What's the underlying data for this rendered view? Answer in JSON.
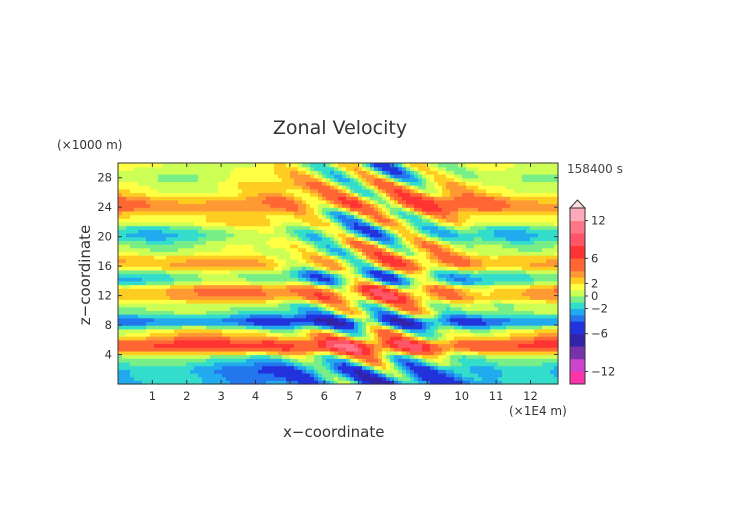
{
  "chart_data": {
    "type": "heatmap",
    "title": "Zonal Velocity",
    "xlabel": "x−coordinate",
    "ylabel": "z−coordinate",
    "x_unit": "(×1E4 m)",
    "y_unit": "(×1000 m)",
    "time_label": "158400 s",
    "xlim": [
      0,
      12.8
    ],
    "ylim": [
      0,
      30
    ],
    "x_ticks": [
      "1",
      "2",
      "3",
      "4",
      "5",
      "6",
      "7",
      "8",
      "9",
      "10",
      "11",
      "12"
    ],
    "y_ticks": [
      "4",
      "8",
      "12",
      "16",
      "20",
      "24",
      "28"
    ],
    "colorbar": {
      "range": [
        -14,
        14
      ],
      "tick_labels": [
        "12",
        "6",
        "2",
        "0",
        "−2",
        "−6",
        "−12"
      ],
      "tick_values": [
        12,
        6,
        2,
        0,
        -2,
        -6,
        -12
      ],
      "levels": [
        -14,
        -12,
        -10,
        -8,
        -6,
        -4,
        -3,
        -2,
        -1,
        0,
        1,
        2,
        3,
        4,
        6,
        8,
        10,
        12,
        14
      ],
      "colors": [
        "#ff33aa",
        "#cc44cc",
        "#7733aa",
        "#3322aa",
        "#2233dd",
        "#2277ee",
        "#22aaee",
        "#33ddcc",
        "#77ee88",
        "#ccff55",
        "#ffff44",
        "#ffcc22",
        "#ff9933",
        "#ff6633",
        "#ff3333",
        "#ff5566",
        "#ff7788",
        "#ffaabb"
      ]
    },
    "bands": [
      {
        "z": 1.5,
        "value": -3
      },
      {
        "z": 3.5,
        "value": -1
      },
      {
        "z": 5.0,
        "value": 7
      },
      {
        "z": 7.0,
        "value": 2
      },
      {
        "z": 8.5,
        "value": -5
      },
      {
        "z": 10.0,
        "value": 0.5
      },
      {
        "z": 12.5,
        "value": 4
      },
      {
        "z": 14.5,
        "value": -1.5
      },
      {
        "z": 16.5,
        "value": 3
      },
      {
        "z": 18.5,
        "value": 1
      },
      {
        "z": 20.5,
        "value": -1
      },
      {
        "z": 22.5,
        "value": 1.5
      },
      {
        "z": 24.5,
        "value": 4
      },
      {
        "z": 26.5,
        "value": 2
      },
      {
        "z": 28.5,
        "value": 0.5
      }
    ]
  }
}
